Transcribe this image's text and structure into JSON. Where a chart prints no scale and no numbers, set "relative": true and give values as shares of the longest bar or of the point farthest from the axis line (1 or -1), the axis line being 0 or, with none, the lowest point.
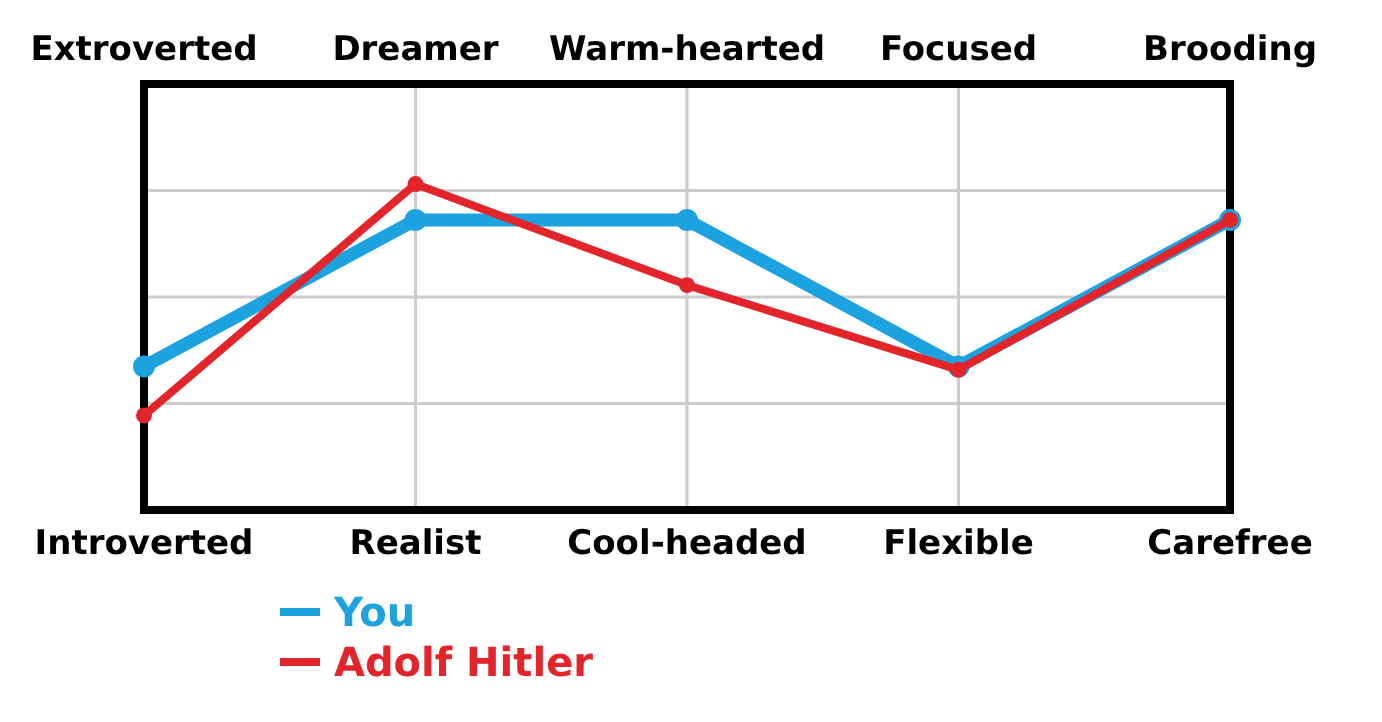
{
  "chart_data": {
    "type": "line",
    "relative": true,
    "categories": [
      "Introverted",
      "Realist",
      "Cool-headed",
      "Flexible",
      "Carefree"
    ],
    "annotations": [
      "Extroverted",
      "Dreamer",
      "Warm-hearted",
      "Focused",
      "Brooding"
    ],
    "series": [
      {
        "name": "You",
        "color": "#1ca3df",
        "values": [
          0.44,
          0.89,
          0.89,
          0.44,
          0.89
        ]
      },
      {
        "name": "Adolf Hitler",
        "color": "#e3242b",
        "values": [
          0.29,
          1,
          0.69,
          0.43,
          0.89
        ]
      }
    ],
    "grid": true,
    "legend": "bottom left",
    "marker": "circle",
    "line_style": "solid"
  }
}
